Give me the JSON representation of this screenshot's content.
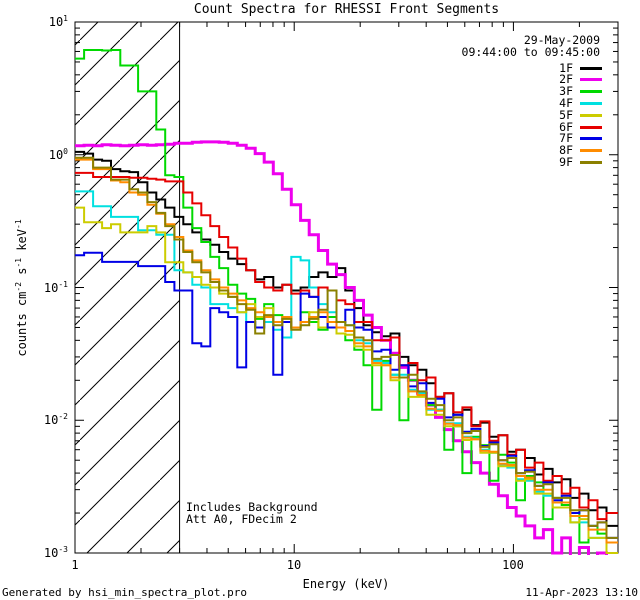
{
  "title": "Count Spectra for RHESSI Front Segments",
  "header": {
    "date": "29-May-2009",
    "time_range": "09:44:00 to 09:45:00"
  },
  "annotation": {
    "line1": "Includes Background",
    "line2": "Att A0, FDecim 2"
  },
  "footer": {
    "left": "Generated by hsi_min_spectra_plot.pro",
    "right": "11-Apr-2023 13:10"
  },
  "axes": {
    "x": {
      "label": "Energy (keV)",
      "scale": "log",
      "min_kev": 1,
      "max_kev": 300,
      "tick_labels": [
        "1",
        "10",
        "100"
      ],
      "tick_values": [
        1,
        10,
        100
      ],
      "minor_ticks": [
        2,
        3,
        4,
        5,
        6,
        7,
        8,
        9,
        20,
        30,
        40,
        50,
        60,
        70,
        80,
        90,
        200,
        300
      ]
    },
    "y": {
      "label_parts": [
        "counts cm",
        "-2",
        " s",
        "-1",
        " keV",
        "-1"
      ],
      "scale": "log",
      "min": 0.001,
      "max": 10,
      "ticks": [
        {
          "base": "10",
          "exp": "1",
          "value": 10
        },
        {
          "base": "10",
          "exp": "0",
          "value": 1
        },
        {
          "base": "10",
          "exp": "-1",
          "value": 0.1
        },
        {
          "base": "10",
          "exp": "-2",
          "value": 0.01
        },
        {
          "base": "10",
          "exp": "-3",
          "value": 0.001
        }
      ]
    }
  },
  "hatch": {
    "from_kev": 1,
    "to_kev": 3,
    "style": "diagonal-lines"
  },
  "legend": {
    "entries": [
      {
        "label": "1F",
        "color": "#000000"
      },
      {
        "label": "2F",
        "color": "#ee00ee"
      },
      {
        "label": "3F",
        "color": "#00d900"
      },
      {
        "label": "4F",
        "color": "#00e0e0"
      },
      {
        "label": "5F",
        "color": "#cccc00"
      },
      {
        "label": "6F",
        "color": "#e60000"
      },
      {
        "label": "7F",
        "color": "#0000e6"
      },
      {
        "label": "8F",
        "color": "#ff8c00"
      },
      {
        "label": "9F",
        "color": "#8b8000"
      }
    ]
  },
  "chart_data": {
    "type": "line",
    "mode": "histogram-steps",
    "title": "Count Spectra for RHESSI Front Segments",
    "xlabel": "Energy (keV)",
    "ylabel": "counts cm^-2 s^-1 keV^-1",
    "x_scale": "log",
    "y_scale": "log",
    "xlim": [
      1,
      300
    ],
    "ylim": [
      0.001,
      10
    ],
    "grid": false,
    "legend_position": "top-right",
    "bin_edges_kev": [
      1.0,
      1.1,
      1.21,
      1.33,
      1.46,
      1.61,
      1.77,
      1.94,
      2.14,
      2.35,
      2.58,
      2.84,
      3.12,
      3.43,
      3.77,
      4.14,
      4.55,
      5.0,
      5.5,
      6.04,
      6.64,
      7.3,
      8.03,
      8.82,
      9.7,
      10.7,
      11.7,
      12.9,
      14.2,
      15.6,
      17.1,
      18.8,
      20.7,
      22.7,
      25.0,
      27.5,
      30.2,
      33.2,
      36.5,
      40.1,
      44.1,
      48.4,
      53.2,
      58.5,
      64.3,
      70.7,
      77.7,
      85.4,
      93.9,
      103.0,
      113.0,
      125.0,
      137.0,
      151.0,
      166.0,
      182.0,
      200.0,
      220.0,
      242.0,
      266.0,
      300.0
    ],
    "series": [
      {
        "name": "1F",
        "color": "#000000",
        "width": 2,
        "values": [
          1.05,
          1.02,
          0.92,
          0.9,
          0.78,
          0.75,
          0.74,
          0.62,
          0.52,
          0.46,
          0.4,
          0.34,
          0.3,
          0.26,
          0.23,
          0.21,
          0.185,
          0.165,
          0.15,
          0.135,
          0.115,
          0.12,
          0.1,
          0.105,
          0.095,
          0.1,
          0.12,
          0.13,
          0.12,
          0.14,
          0.095,
          0.07,
          0.052,
          0.046,
          0.043,
          0.045,
          0.03,
          0.026,
          0.024,
          0.019,
          0.015,
          0.016,
          0.011,
          0.012,
          0.0092,
          0.0096,
          0.0075,
          0.0077,
          0.0058,
          0.006,
          0.0052,
          0.0039,
          0.0043,
          0.0034,
          0.0036,
          0.0026,
          0.0028,
          0.0021,
          0.0022,
          0.0016
        ]
      },
      {
        "name": "2F",
        "color": "#ee00ee",
        "width": 3,
        "values": [
          1.17,
          1.18,
          1.17,
          1.19,
          1.18,
          1.17,
          1.18,
          1.19,
          1.18,
          1.19,
          1.2,
          1.22,
          1.22,
          1.24,
          1.25,
          1.25,
          1.24,
          1.22,
          1.18,
          1.12,
          1.02,
          0.88,
          0.72,
          0.55,
          0.42,
          0.32,
          0.25,
          0.19,
          0.15,
          0.125,
          0.1,
          0.08,
          0.062,
          0.05,
          0.04,
          0.032,
          0.025,
          0.02,
          0.016,
          0.013,
          0.0105,
          0.0085,
          0.007,
          0.0058,
          0.0048,
          0.004,
          0.0033,
          0.0027,
          0.0022,
          0.0019,
          0.0016,
          0.0013,
          0.0015,
          0.001,
          0.0013,
          0.0009,
          0.0011,
          0.0008,
          0.001,
          0.0009
        ]
      },
      {
        "name": "3F",
        "color": "#00d900",
        "width": 2,
        "values": [
          5.3,
          6.15,
          6.15,
          6.1,
          6.15,
          4.7,
          4.7,
          3.0,
          3.0,
          1.55,
          0.7,
          0.68,
          0.4,
          0.28,
          0.22,
          0.17,
          0.14,
          0.105,
          0.09,
          0.082,
          0.058,
          0.075,
          0.062,
          0.055,
          0.05,
          0.065,
          0.055,
          0.048,
          0.06,
          0.045,
          0.04,
          0.034,
          0.026,
          0.012,
          0.028,
          0.022,
          0.01,
          0.02,
          0.016,
          0.013,
          0.012,
          0.006,
          0.009,
          0.004,
          0.0075,
          0.0065,
          0.0035,
          0.0055,
          0.0048,
          0.0025,
          0.0038,
          0.0034,
          0.0018,
          0.0026,
          0.0023,
          0.002,
          0.0012,
          0.0016,
          0.0014,
          0.0012
        ]
      },
      {
        "name": "4F",
        "color": "#00e0e0",
        "width": 2,
        "values": [
          0.53,
          0.53,
          0.41,
          0.41,
          0.34,
          0.34,
          0.34,
          0.27,
          0.27,
          0.25,
          0.25,
          0.135,
          0.13,
          0.105,
          0.1,
          0.075,
          0.075,
          0.07,
          0.065,
          0.055,
          0.05,
          0.055,
          0.048,
          0.042,
          0.17,
          0.16,
          0.1,
          0.075,
          0.065,
          0.055,
          0.052,
          0.04,
          0.038,
          0.028,
          0.027,
          0.022,
          0.022,
          0.017,
          0.016,
          0.012,
          0.012,
          0.0095,
          0.0095,
          0.0075,
          0.0073,
          0.006,
          0.0057,
          0.0046,
          0.0044,
          0.0036,
          0.0035,
          0.0029,
          0.0027,
          0.0022,
          0.0022,
          0.0017,
          0.0017,
          0.0013,
          0.0013,
          0.001
        ]
      },
      {
        "name": "5F",
        "color": "#cccc00",
        "width": 2,
        "values": [
          0.4,
          0.31,
          0.31,
          0.28,
          0.3,
          0.26,
          0.26,
          0.26,
          0.29,
          0.26,
          0.155,
          0.155,
          0.13,
          0.12,
          0.105,
          0.1,
          0.09,
          0.085,
          0.065,
          0.075,
          0.06,
          0.07,
          0.055,
          0.06,
          0.05,
          0.055,
          0.065,
          0.05,
          0.055,
          0.045,
          0.044,
          0.036,
          0.034,
          0.026,
          0.026,
          0.02,
          0.021,
          0.015,
          0.015,
          0.011,
          0.011,
          0.009,
          0.009,
          0.0071,
          0.0072,
          0.0057,
          0.0057,
          0.0045,
          0.0045,
          0.0035,
          0.0036,
          0.0028,
          0.0028,
          0.0022,
          0.0022,
          0.0017,
          0.0018,
          0.0013,
          0.0013,
          0.001
        ]
      },
      {
        "name": "6F",
        "color": "#e60000",
        "width": 2,
        "values": [
          0.73,
          0.73,
          0.68,
          0.68,
          0.68,
          0.68,
          0.67,
          0.67,
          0.66,
          0.65,
          0.63,
          0.63,
          0.52,
          0.43,
          0.35,
          0.29,
          0.24,
          0.2,
          0.165,
          0.135,
          0.11,
          0.1,
          0.095,
          0.105,
          0.09,
          0.095,
          0.085,
          0.1,
          0.095,
          0.08,
          0.075,
          0.055,
          0.055,
          0.04,
          0.04,
          0.042,
          0.026,
          0.027,
          0.02,
          0.021,
          0.015,
          0.016,
          0.0115,
          0.0125,
          0.009,
          0.0098,
          0.007,
          0.0077,
          0.0055,
          0.006,
          0.0044,
          0.0048,
          0.0035,
          0.0038,
          0.0028,
          0.0031,
          0.0022,
          0.0025,
          0.0018,
          0.002
        ]
      },
      {
        "name": "7F",
        "color": "#0000e6",
        "width": 2,
        "values": [
          0.175,
          0.183,
          0.183,
          0.156,
          0.156,
          0.156,
          0.156,
          0.145,
          0.145,
          0.145,
          0.11,
          0.095,
          0.095,
          0.038,
          0.036,
          0.07,
          0.065,
          0.06,
          0.025,
          0.055,
          0.05,
          0.06,
          0.022,
          0.055,
          0.05,
          0.09,
          0.085,
          0.06,
          0.05,
          0.055,
          0.068,
          0.05,
          0.048,
          0.033,
          0.034,
          0.024,
          0.026,
          0.018,
          0.019,
          0.0135,
          0.0145,
          0.0105,
          0.011,
          0.0082,
          0.0086,
          0.0064,
          0.0068,
          0.005,
          0.0054,
          0.004,
          0.0042,
          0.0032,
          0.0034,
          0.0025,
          0.0027,
          0.002,
          0.0021,
          0.0016,
          0.0017,
          0.0013
        ]
      },
      {
        "name": "8F",
        "color": "#ff8c00",
        "width": 2,
        "values": [
          0.92,
          0.92,
          0.78,
          0.78,
          0.64,
          0.62,
          0.52,
          0.5,
          0.42,
          0.36,
          0.3,
          0.24,
          0.19,
          0.16,
          0.135,
          0.115,
          0.1,
          0.09,
          0.08,
          0.07,
          0.065,
          0.06,
          0.055,
          0.06,
          0.05,
          0.055,
          0.06,
          0.065,
          0.055,
          0.05,
          0.047,
          0.038,
          0.036,
          0.027,
          0.026,
          0.021,
          0.021,
          0.0165,
          0.0155,
          0.0122,
          0.0118,
          0.0094,
          0.0092,
          0.0074,
          0.0072,
          0.0059,
          0.0058,
          0.0047,
          0.0046,
          0.0038,
          0.0037,
          0.003,
          0.003,
          0.0024,
          0.0024,
          0.0019,
          0.0019,
          0.0015,
          0.0015,
          0.0012
        ]
      },
      {
        "name": "9F",
        "color": "#8b8000",
        "width": 2,
        "values": [
          0.95,
          0.95,
          0.8,
          0.8,
          0.65,
          0.65,
          0.55,
          0.52,
          0.44,
          0.365,
          0.29,
          0.23,
          0.185,
          0.155,
          0.13,
          0.11,
          0.095,
          0.085,
          0.075,
          0.068,
          0.045,
          0.062,
          0.052,
          0.058,
          0.048,
          0.052,
          0.058,
          0.068,
          0.095,
          0.055,
          0.052,
          0.042,
          0.04,
          0.029,
          0.03,
          0.031,
          0.021,
          0.022,
          0.0165,
          0.0145,
          0.013,
          0.01,
          0.0105,
          0.008,
          0.0083,
          0.0063,
          0.0066,
          0.005,
          0.0052,
          0.004,
          0.0041,
          0.0032,
          0.0033,
          0.0026,
          0.0026,
          0.0021,
          0.0021,
          0.0016,
          0.0017,
          0.0013
        ]
      }
    ]
  }
}
